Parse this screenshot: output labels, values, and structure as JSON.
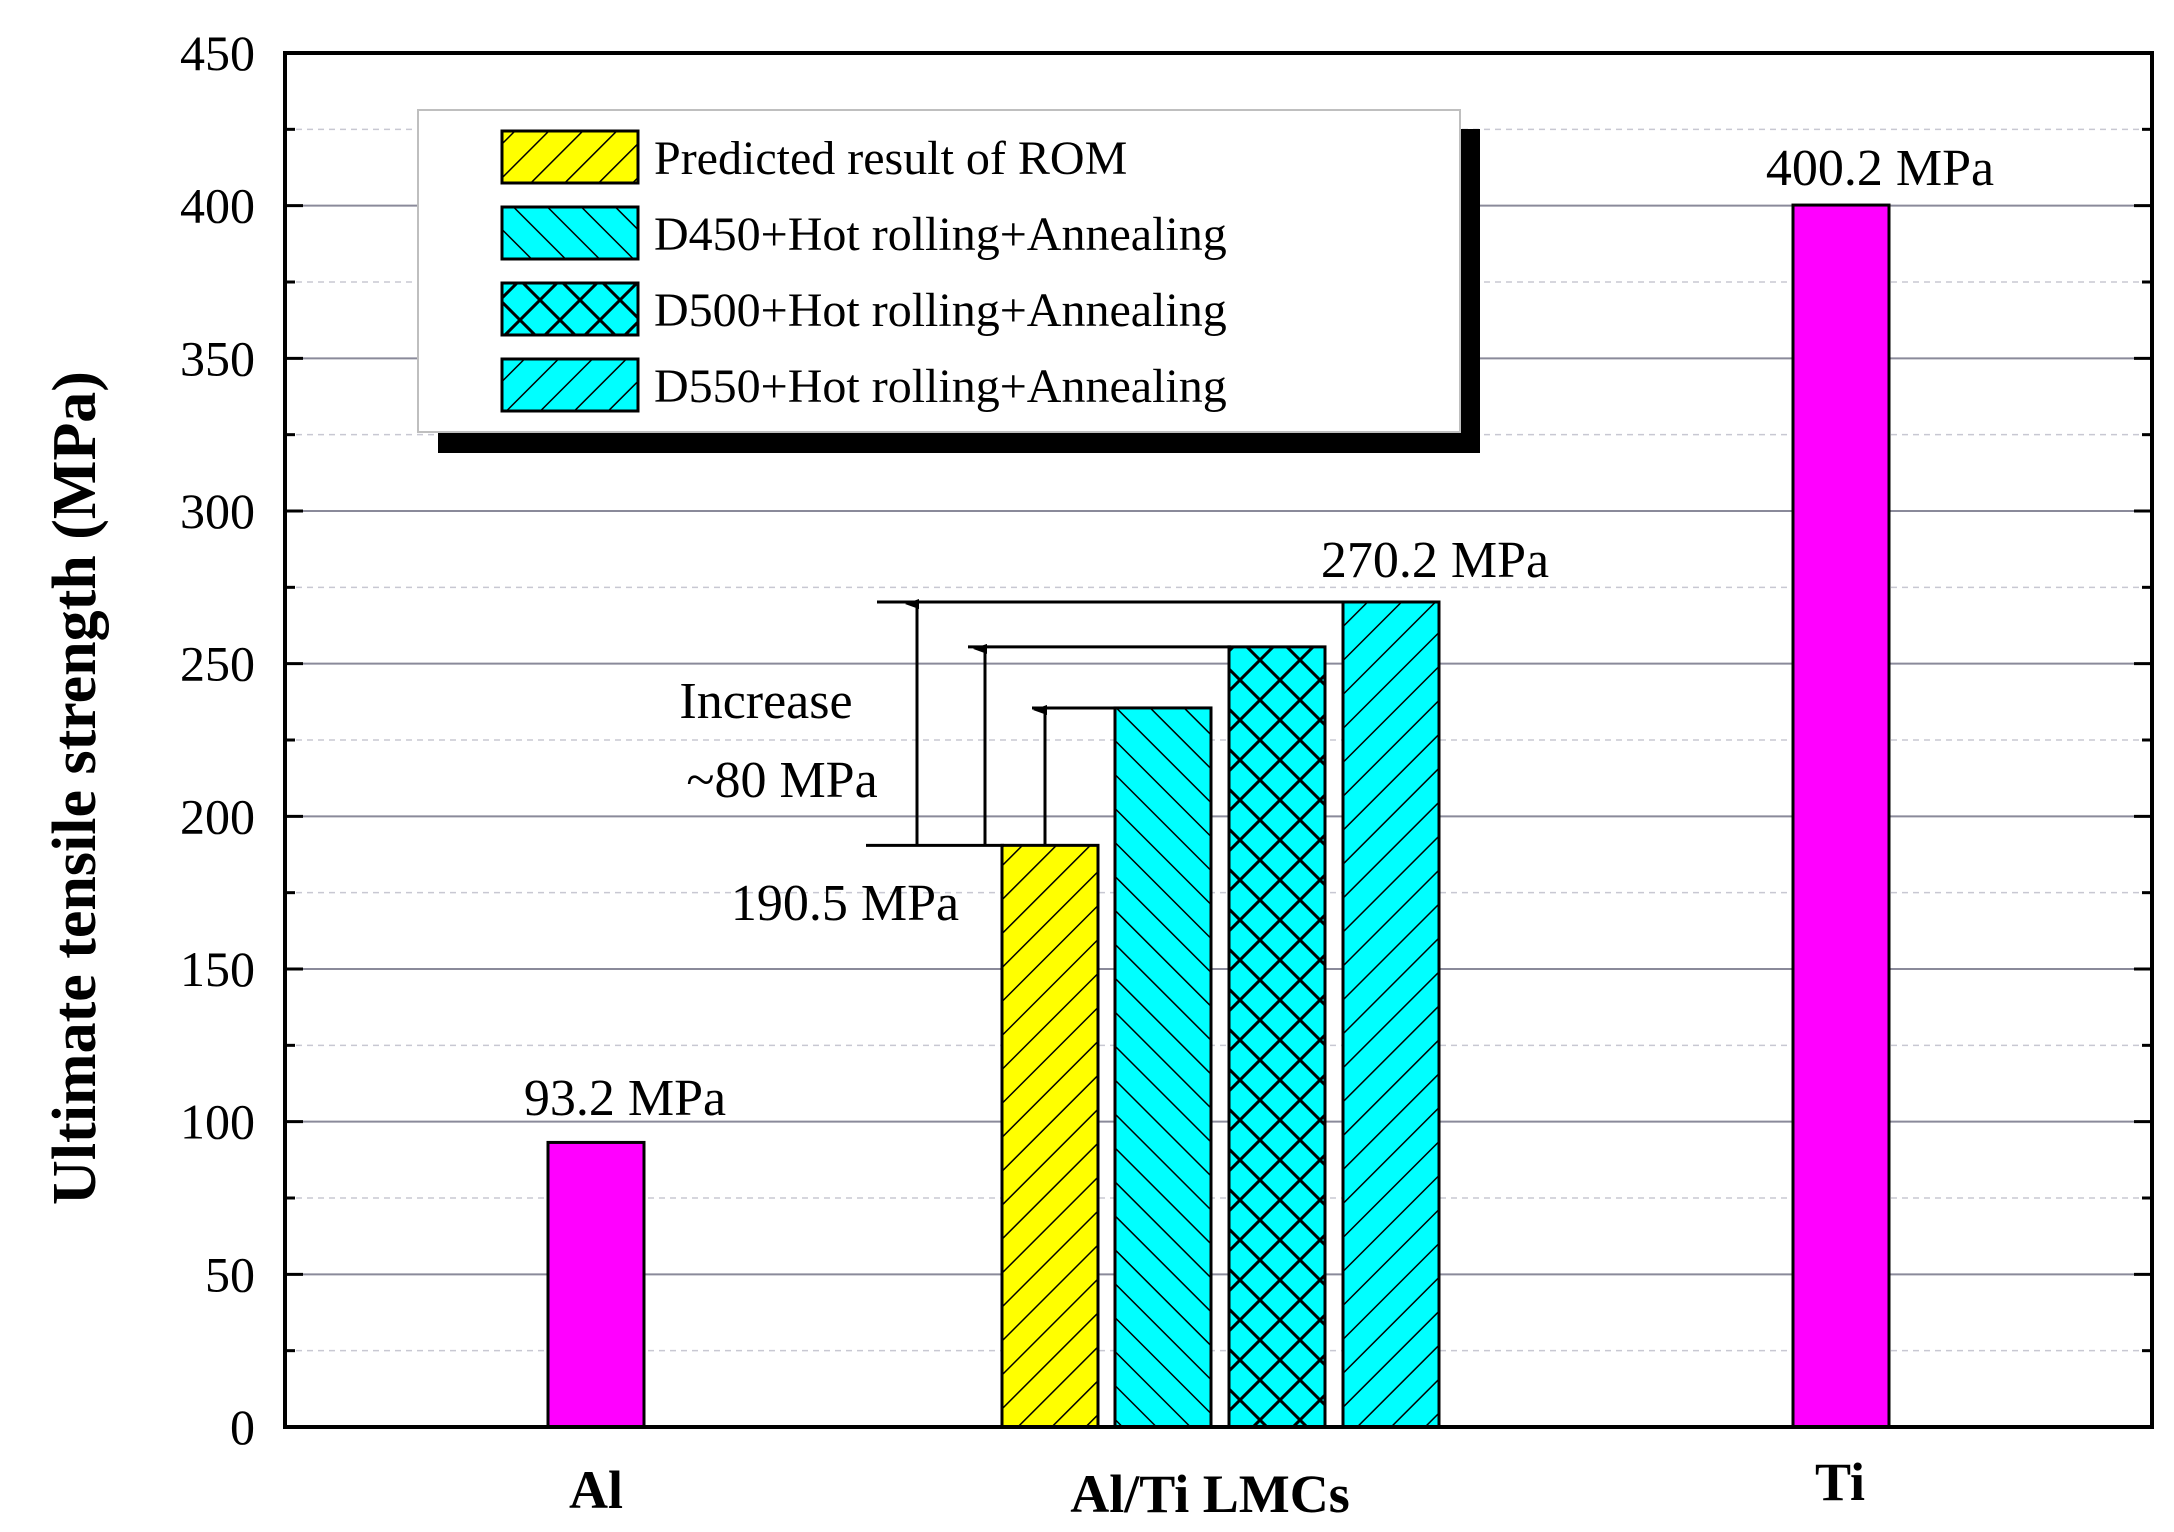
{
  "chart_data": {
    "type": "bar",
    "title": "",
    "xlabel": "",
    "ylabel": "Ultimate tensile strength (MPa)",
    "ylim": [
      0,
      450
    ],
    "ytick_step": 50,
    "yticks": [
      "0",
      "50",
      "100",
      "150",
      "200",
      "250",
      "300",
      "350",
      "400",
      "450"
    ],
    "grid": true,
    "categories": [
      "Al",
      "Al/Ti LMCs",
      "Ti"
    ],
    "series": [
      {
        "name": "Al",
        "category": "Al",
        "value": 93.2,
        "label": "93.2 MPa",
        "color": "#ff00ff",
        "pattern": "solid"
      },
      {
        "name": "Predicted result of ROM",
        "category": "Al/Ti LMCs",
        "value": 190.5,
        "label": "190.5 MPa",
        "color": "#ffff00",
        "pattern": "hatch-forward"
      },
      {
        "name": "D450+Hot rolling+Annealing",
        "category": "Al/Ti LMCs",
        "value": 235.5,
        "label": "",
        "color": "#00ffff",
        "pattern": "hatch-back"
      },
      {
        "name": "D500+Hot rolling+Annealing",
        "category": "Al/Ti LMCs",
        "value": 255.5,
        "label": "",
        "color": "#00ffff",
        "pattern": "crosshatch"
      },
      {
        "name": "D550+Hot rolling+Annealing",
        "category": "Al/Ti LMCs",
        "value": 270.2,
        "label": "270.2 MPa",
        "color": "#00ffff",
        "pattern": "hatch-forward"
      },
      {
        "name": "Ti",
        "category": "Ti",
        "value": 400.2,
        "label": "400.2 MPa",
        "color": "#ff00ff",
        "pattern": "solid"
      }
    ],
    "legend": {
      "position": "top-left",
      "items": [
        "Predicted result of ROM",
        "D450+Hot rolling+Annealing",
        "D500+Hot rolling+Annealing",
        "D550+Hot rolling+Annealing"
      ]
    },
    "annotations": {
      "increase_line1": "Increase",
      "increase_line2": "~80 MPa",
      "base_value": 190.5
    }
  }
}
